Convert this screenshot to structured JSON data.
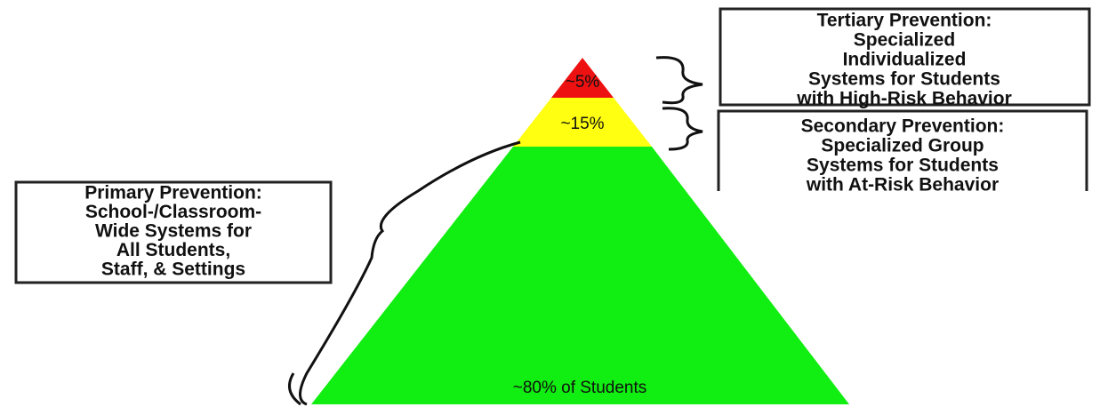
{
  "pyramid": {
    "tiers": [
      {
        "label": "~5%"
      },
      {
        "label": "~15%"
      },
      {
        "label": "~80% of Students"
      }
    ]
  },
  "boxes": [
    {
      "lines": [
        "Tertiary Prevention:",
        "Specialized",
        "Individualized",
        "Systems for Students",
        "with High-Risk Behavior"
      ]
    },
    {
      "lines": [
        "Secondary Prevention:",
        "Specialized Group",
        "Systems for Students",
        "with At-Risk Behavior"
      ]
    },
    {
      "lines": [
        "Primary Prevention:",
        "School-/Classroom-",
        "Wide Systems for",
        "All Students,",
        "Staff, & Settings"
      ]
    }
  ]
}
